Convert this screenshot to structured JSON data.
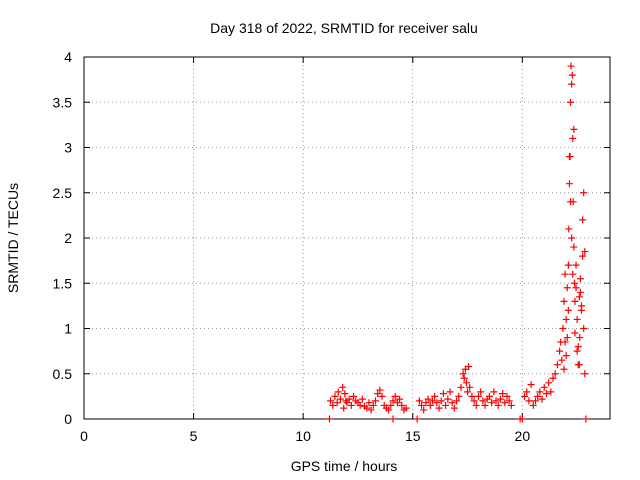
{
  "chart_data": {
    "type": "scatter",
    "title": "Day 318 of 2022, SRMTID for receiver salu",
    "xlabel": "GPS time / hours",
    "ylabel": "SRMTID / TECUs",
    "xlim": [
      0,
      24
    ],
    "ylim": [
      0,
      4
    ],
    "xticks": [
      0,
      5,
      10,
      15,
      20
    ],
    "xtick_labels": [
      "0",
      "5",
      "10",
      "15",
      "20"
    ],
    "yticks": [
      0,
      0.5,
      1,
      1.5,
      2,
      2.5,
      3,
      3.5,
      4
    ],
    "ytick_labels": [
      "0",
      "0.5",
      "1",
      "1.5",
      "2",
      "2.5",
      "3",
      "3.5",
      "4"
    ],
    "grid": true,
    "marker": "+",
    "color": "#ff0000",
    "series": [
      {
        "name": "SRMTID",
        "x": [
          11.25,
          11.35,
          11.45,
          11.55,
          11.6,
          11.7,
          11.8,
          11.85,
          11.9,
          11.95,
          12.0,
          12.1,
          12.2,
          12.3,
          12.4,
          12.5,
          12.6,
          12.7,
          12.8,
          12.9,
          13.0,
          13.1,
          13.2,
          13.3,
          13.4,
          13.5,
          13.6,
          13.7,
          13.8,
          13.9,
          14.0,
          14.1,
          14.2,
          14.3,
          14.4,
          14.5,
          14.6,
          14.7,
          15.3,
          15.4,
          15.5,
          15.6,
          15.7,
          15.8,
          15.9,
          16.0,
          16.1,
          16.2,
          16.3,
          16.4,
          16.5,
          16.6,
          16.7,
          16.8,
          16.9,
          17.0,
          17.1,
          17.2,
          17.3,
          17.35,
          17.4,
          17.45,
          17.5,
          17.55,
          17.6,
          17.7,
          17.8,
          17.9,
          18.0,
          18.1,
          18.2,
          18.3,
          18.4,
          18.5,
          18.6,
          18.7,
          18.8,
          18.9,
          19.0,
          19.1,
          19.2,
          19.3,
          19.4,
          19.5,
          20.1,
          20.2,
          20.3,
          20.4,
          20.5,
          20.6,
          20.7,
          20.8,
          20.9,
          21.0,
          21.1,
          21.2,
          21.3,
          21.4,
          21.5,
          21.6,
          21.7,
          21.75,
          21.8,
          21.85,
          21.9,
          21.95,
          22.0,
          22.05,
          22.1,
          22.12,
          22.15,
          22.18,
          22.2,
          22.22,
          22.25,
          22.28,
          22.3,
          22.32,
          22.35,
          22.38,
          22.4,
          22.45,
          22.5,
          22.55,
          22.6,
          22.62,
          22.65,
          22.7,
          22.75,
          22.8,
          22.85,
          11.2,
          14.1,
          15.2,
          19.9,
          20.0,
          22.9
        ],
        "y": [
          0.2,
          0.15,
          0.25,
          0.18,
          0.3,
          0.22,
          0.35,
          0.12,
          0.28,
          0.2,
          0.18,
          0.22,
          0.15,
          0.25,
          0.2,
          0.18,
          0.15,
          0.22,
          0.14,
          0.12,
          0.18,
          0.1,
          0.15,
          0.2,
          0.28,
          0.32,
          0.25,
          0.15,
          0.12,
          0.1,
          0.15,
          0.2,
          0.25,
          0.18,
          0.22,
          0.15,
          0.1,
          0.12,
          0.2,
          0.15,
          0.1,
          0.18,
          0.22,
          0.15,
          0.2,
          0.25,
          0.18,
          0.12,
          0.2,
          0.28,
          0.15,
          0.22,
          0.3,
          0.18,
          0.12,
          0.2,
          0.25,
          0.35,
          0.5,
          0.45,
          0.55,
          0.4,
          0.3,
          0.58,
          0.35,
          0.25,
          0.2,
          0.15,
          0.25,
          0.3,
          0.2,
          0.15,
          0.22,
          0.25,
          0.18,
          0.3,
          0.2,
          0.15,
          0.22,
          0.28,
          0.18,
          0.25,
          0.2,
          0.15,
          0.25,
          0.3,
          0.2,
          0.38,
          0.15,
          0.2,
          0.25,
          0.3,
          0.22,
          0.35,
          0.28,
          0.4,
          0.3,
          0.45,
          0.5,
          0.6,
          0.75,
          0.85,
          0.65,
          1.0,
          1.3,
          1.6,
          1.1,
          0.9,
          1.7,
          2.1,
          2.6,
          2.9,
          3.5,
          3.9,
          3.7,
          3.8,
          3.1,
          2.4,
          1.9,
          1.5,
          1.3,
          1.7,
          1.1,
          0.8,
          0.6,
          0.9,
          1.4,
          1.2,
          1.8,
          1.0,
          0.5,
          0.0,
          0.0,
          0.0,
          0.0,
          0.0,
          0.0
        ],
        "extra": {
          "x": [
            21.9,
            22.0,
            22.1,
            22.2,
            22.3,
            22.4,
            22.5,
            22.6,
            22.7,
            22.8,
            22.15,
            22.35,
            22.45,
            22.55,
            22.65,
            22.75,
            22.25,
            22.05,
            21.95,
            22.85
          ],
          "y": [
            0.55,
            0.7,
            1.2,
            2.4,
            1.6,
            0.95,
            0.75,
            1.35,
            1.25,
            2.5,
            2.9,
            3.2,
            1.45,
            0.6,
            1.55,
            2.2,
            2.0,
            1.45,
            0.85,
            1.85
          ]
        }
      }
    ]
  }
}
